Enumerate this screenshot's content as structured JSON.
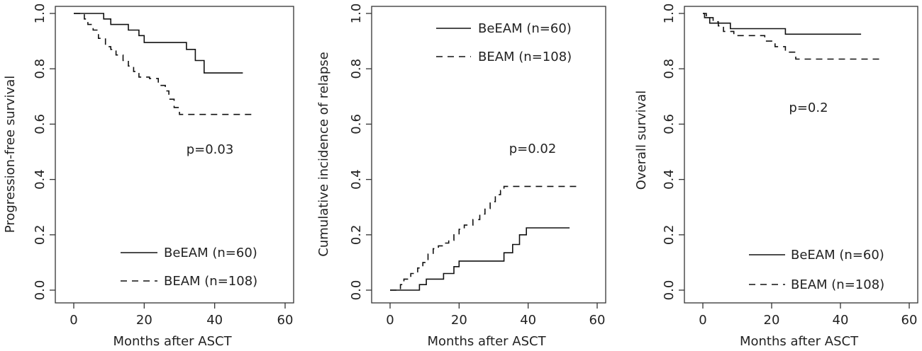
{
  "chart_data": [
    {
      "type": "line",
      "panel": "left",
      "xlabel": "Months after ASCT",
      "ylabel": "Progression-free survival",
      "xlim": [
        0,
        60
      ],
      "ylim": [
        0,
        1
      ],
      "xticks": [
        "0",
        "20",
        "40",
        "60"
      ],
      "yticks": [
        "0.0",
        "0.2",
        "0.4",
        "0.6",
        "0.8",
        "1.0"
      ],
      "annotation": "p=0.03",
      "legend_position": "bottom-right",
      "series": [
        {
          "name": "BeEAM (n=60)",
          "style": "solid",
          "x": [
            0,
            8.5,
            8.5,
            10.5,
            10.5,
            15.5,
            15.5,
            18.5,
            18.5,
            20,
            20,
            32,
            32,
            34.5,
            34.5,
            37,
            37,
            48
          ],
          "y": [
            1.0,
            1.0,
            0.98,
            0.98,
            0.96,
            0.96,
            0.94,
            0.94,
            0.92,
            0.92,
            0.895,
            0.895,
            0.87,
            0.87,
            0.83,
            0.83,
            0.785,
            0.785
          ]
        },
        {
          "name": "BEAM (n=108)",
          "style": "dashed",
          "x": [
            0,
            3,
            3,
            4,
            4,
            5.5,
            5.5,
            7,
            7,
            9,
            9,
            10.5,
            10.5,
            12,
            12,
            14,
            14,
            15.5,
            15.5,
            17,
            17,
            18.5,
            18.5,
            20,
            20,
            21.5,
            21.5,
            24,
            24,
            26,
            26,
            27,
            27,
            28.5,
            28.5,
            30,
            30,
            51
          ],
          "y": [
            1.0,
            1.0,
            0.98,
            0.98,
            0.96,
            0.96,
            0.94,
            0.94,
            0.91,
            0.91,
            0.88,
            0.88,
            0.87,
            0.87,
            0.85,
            0.85,
            0.83,
            0.83,
            0.81,
            0.81,
            0.79,
            0.79,
            0.77,
            0.77,
            0.77,
            0.77,
            0.765,
            0.765,
            0.74,
            0.74,
            0.72,
            0.72,
            0.69,
            0.69,
            0.66,
            0.66,
            0.635,
            0.635
          ]
        }
      ]
    },
    {
      "type": "line",
      "panel": "middle",
      "xlabel": "Months after ASCT",
      "ylabel": "Cumulative incidence of relapse",
      "xlim": [
        0,
        60
      ],
      "ylim": [
        0,
        1
      ],
      "xticks": [
        "0",
        "20",
        "40",
        "60"
      ],
      "yticks": [
        "0.0",
        "0.2",
        "0.4",
        "0.6",
        "0.8",
        "1.0"
      ],
      "annotation": "p=0.02",
      "legend_position": "top-right",
      "series": [
        {
          "name": "BeEAM (n=60)",
          "style": "solid",
          "x": [
            0,
            8.5,
            8.5,
            10.5,
            10.5,
            15.5,
            15.5,
            18.5,
            18.5,
            20,
            20,
            33,
            33,
            35.5,
            35.5,
            37.5,
            37.5,
            39.5,
            39.5,
            52
          ],
          "y": [
            0.0,
            0.0,
            0.02,
            0.02,
            0.04,
            0.04,
            0.06,
            0.06,
            0.085,
            0.085,
            0.105,
            0.105,
            0.135,
            0.135,
            0.165,
            0.165,
            0.2,
            0.2,
            0.225,
            0.225
          ]
        },
        {
          "name": "BEAM (n=108)",
          "style": "dashed",
          "x": [
            0,
            3,
            3,
            4,
            4,
            6,
            6,
            8,
            8,
            9.5,
            9.5,
            11,
            11,
            12.5,
            12.5,
            14,
            14,
            15.5,
            15.5,
            17,
            17,
            18.5,
            18.5,
            20,
            20,
            21.5,
            21.5,
            24,
            24,
            26,
            26,
            27.5,
            27.5,
            29,
            29,
            30.5,
            30.5,
            32,
            32,
            33,
            33,
            54
          ],
          "y": [
            0.0,
            0.0,
            0.02,
            0.02,
            0.04,
            0.04,
            0.06,
            0.06,
            0.08,
            0.08,
            0.1,
            0.1,
            0.13,
            0.13,
            0.15,
            0.15,
            0.16,
            0.16,
            0.17,
            0.17,
            0.18,
            0.18,
            0.2,
            0.2,
            0.22,
            0.22,
            0.235,
            0.235,
            0.255,
            0.255,
            0.275,
            0.275,
            0.295,
            0.295,
            0.32,
            0.32,
            0.345,
            0.345,
            0.36,
            0.36,
            0.375,
            0.375
          ]
        }
      ]
    },
    {
      "type": "line",
      "panel": "right",
      "xlabel": "Months after ASCT",
      "ylabel": "Overall survival",
      "xlim": [
        0,
        60
      ],
      "ylim": [
        0,
        1
      ],
      "xticks": [
        "0",
        "20",
        "40",
        "60"
      ],
      "yticks": [
        "0.0",
        "0.2",
        "0.4",
        "0.6",
        "0.8",
        "1.0"
      ],
      "annotation": "p=0.2",
      "legend_position": "bottom-right",
      "series": [
        {
          "name": "BeEAM (n=60)",
          "style": "solid",
          "x": [
            0,
            0.5,
            0.5,
            2,
            2,
            8,
            8,
            24,
            24,
            46
          ],
          "y": [
            1.0,
            1.0,
            0.985,
            0.985,
            0.965,
            0.965,
            0.945,
            0.945,
            0.925,
            0.925
          ]
        },
        {
          "name": "BEAM (n=108)",
          "style": "dashed",
          "x": [
            0,
            1,
            1,
            3,
            3,
            4.5,
            4.5,
            6,
            6,
            9,
            9,
            18,
            18,
            21,
            21,
            24,
            24,
            27,
            27,
            29,
            29,
            52
          ],
          "y": [
            1.0,
            1.0,
            0.985,
            0.985,
            0.97,
            0.97,
            0.955,
            0.955,
            0.935,
            0.935,
            0.92,
            0.92,
            0.9,
            0.9,
            0.88,
            0.88,
            0.86,
            0.86,
            0.835,
            0.835,
            0.835,
            0.835
          ]
        }
      ]
    }
  ]
}
